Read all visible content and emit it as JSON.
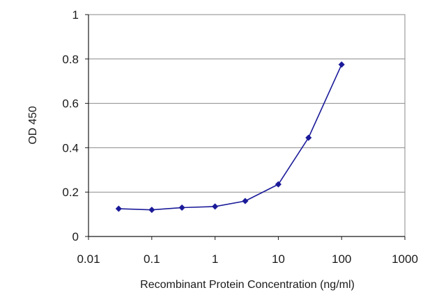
{
  "chart_data": {
    "type": "line",
    "title": "",
    "xlabel": "Recombinant Protein Concentration (ng/ml)",
    "ylabel": "OD 450",
    "x_scale": "log",
    "xlim": [
      0.01,
      1000
    ],
    "ylim": [
      0,
      1
    ],
    "x_ticks": [
      0.01,
      0.1,
      1,
      10,
      100,
      1000
    ],
    "x_tick_labels": [
      "0.01",
      "0.1",
      "1",
      "10",
      "100",
      "1000"
    ],
    "y_ticks": [
      0,
      0.2,
      0.4,
      0.6,
      0.8,
      1
    ],
    "y_tick_labels": [
      "0",
      "0.2",
      "0.4",
      "0.6",
      "0.8",
      "1"
    ],
    "grid": "horizontal",
    "legend": "none",
    "series": [
      {
        "color": "#1a1a99",
        "x": [
          0.03,
          0.1,
          0.3,
          1,
          3,
          10,
          30,
          100
        ],
        "y": [
          0.125,
          0.12,
          0.13,
          0.135,
          0.16,
          0.235,
          0.445,
          0.775
        ]
      }
    ]
  }
}
